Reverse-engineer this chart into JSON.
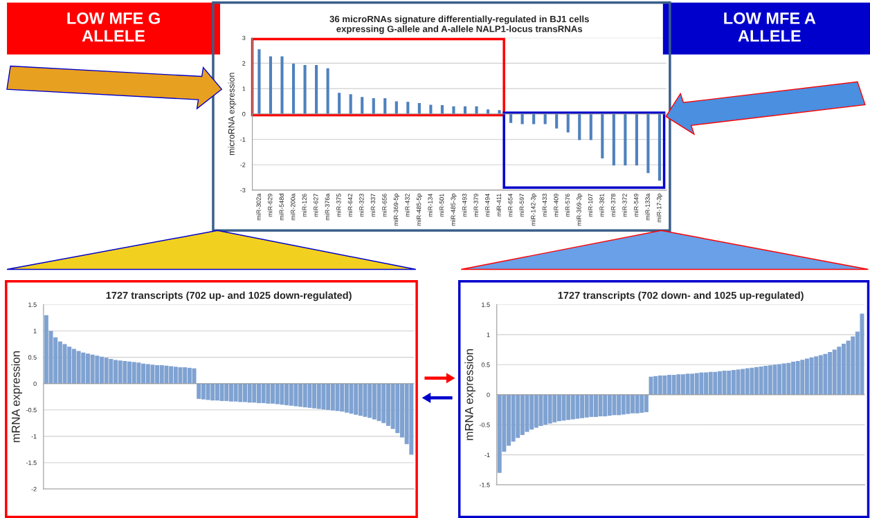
{
  "chart_data": [
    {
      "type": "bar",
      "title": "36 microRNAs signature differentially-regulated in BJ1 cells\nexpressing G-allele and A-allele NALP1-locus transRNAs",
      "ylabel": "microRNA expression",
      "categories": [
        "miR-302a",
        "miR-629",
        "miR-548d",
        "miR-200a",
        "miR-126",
        "miR-627",
        "miR-376a",
        "miR-375",
        "miR-642",
        "miR-323",
        "miR-337",
        "miR-656",
        "miR-369-5p",
        "miR-432",
        "miR-485-5p",
        "miR-134",
        "miR-501",
        "miR-485-3p",
        "miR-493",
        "miR-379",
        "miR-494",
        "miR-411",
        "miR-654",
        "miR-597",
        "miR-142-3p",
        "miR-433",
        "miR-409",
        "miR-576",
        "miR-369-3p",
        "miR-107",
        "miR-381",
        "miR-378",
        "miR-372",
        "miR-549",
        "miR-133a",
        "miR-17-3p"
      ],
      "values": [
        2.55,
        2.27,
        2.27,
        1.98,
        1.93,
        1.93,
        1.8,
        0.83,
        0.78,
        0.67,
        0.62,
        0.62,
        0.5,
        0.48,
        0.43,
        0.36,
        0.35,
        0.3,
        0.3,
        0.3,
        0.18,
        0.15,
        -0.35,
        -0.4,
        -0.4,
        -0.4,
        -0.57,
        -0.73,
        -1.03,
        -1.03,
        -1.75,
        -2.03,
        -2.03,
        -2.03,
        -2.33,
        -2.63
      ],
      "color": "#4f81bd",
      "ylim": [
        -3,
        3
      ],
      "yticks": [
        -3,
        -2,
        -1,
        0,
        1,
        2,
        3
      ],
      "grid": "y",
      "annotations": [
        "LOW MFE G\nALLELE",
        "LOW MFE A\nALLELE"
      ]
    },
    {
      "type": "bar",
      "title": "1727 transcripts (702 up- and 1025 down-regulated)",
      "ylabel": "mRNA expression",
      "categories": [
        null,
        null,
        null,
        null,
        null,
        null,
        null,
        null,
        null,
        null,
        null,
        null,
        null,
        null,
        null,
        null,
        null,
        null,
        null,
        null,
        null,
        null,
        null,
        null,
        null,
        null,
        null,
        null,
        null,
        null,
        null,
        null,
        null,
        null,
        null,
        null,
        null,
        null,
        null,
        null,
        null,
        null,
        null,
        null,
        null,
        null,
        null,
        null,
        null,
        null,
        null,
        null,
        null,
        null,
        null,
        null,
        null,
        null,
        null,
        null,
        null,
        null,
        null,
        null,
        null,
        null,
        null,
        null,
        null,
        null,
        null,
        null,
        null,
        null,
        null,
        null,
        null,
        null,
        null,
        null
      ],
      "values": [
        1.3,
        1.0,
        0.88,
        0.8,
        0.75,
        0.7,
        0.66,
        0.62,
        0.59,
        0.57,
        0.55,
        0.53,
        0.51,
        0.49,
        0.47,
        0.45,
        0.44,
        0.43,
        0.42,
        0.41,
        0.4,
        0.38,
        0.37,
        0.36,
        0.35,
        0.35,
        0.34,
        0.33,
        0.32,
        0.31,
        0.31,
        0.3,
        0.29,
        -0.29,
        -0.3,
        -0.31,
        -0.32,
        -0.32,
        -0.33,
        -0.33,
        -0.34,
        -0.34,
        -0.35,
        -0.35,
        -0.36,
        -0.36,
        -0.37,
        -0.37,
        -0.38,
        -0.38,
        -0.39,
        -0.4,
        -0.41,
        -0.42,
        -0.43,
        -0.44,
        -0.45,
        -0.46,
        -0.47,
        -0.48,
        -0.49,
        -0.5,
        -0.51,
        -0.52,
        -0.53,
        -0.55,
        -0.57,
        -0.59,
        -0.61,
        -0.63,
        -0.65,
        -0.68,
        -0.71,
        -0.75,
        -0.8,
        -0.86,
        -0.94,
        -1.02,
        -1.15,
        -1.35
      ],
      "color": "#7fa2d1",
      "ylim": [
        -2,
        1.5
      ],
      "yticks": [
        -2,
        -1.5,
        -1,
        -0.5,
        0,
        0.5,
        1,
        1.5
      ],
      "grid": "y"
    },
    {
      "type": "bar",
      "title": "1727 transcripts (702 down- and 1025 up-regulated)",
      "ylabel": "mRNA expression",
      "categories": [
        null,
        null,
        null,
        null,
        null,
        null,
        null,
        null,
        null,
        null,
        null,
        null,
        null,
        null,
        null,
        null,
        null,
        null,
        null,
        null,
        null,
        null,
        null,
        null,
        null,
        null,
        null,
        null,
        null,
        null,
        null,
        null,
        null,
        null,
        null,
        null,
        null,
        null,
        null,
        null,
        null,
        null,
        null,
        null,
        null,
        null,
        null,
        null,
        null,
        null,
        null,
        null,
        null,
        null,
        null,
        null,
        null,
        null,
        null,
        null,
        null,
        null,
        null,
        null,
        null,
        null,
        null,
        null,
        null,
        null,
        null,
        null,
        null,
        null,
        null,
        null,
        null,
        null,
        null,
        null
      ],
      "values": [
        -1.3,
        -0.95,
        -0.85,
        -0.78,
        -0.72,
        -0.67,
        -0.62,
        -0.58,
        -0.55,
        -0.52,
        -0.5,
        -0.48,
        -0.46,
        -0.44,
        -0.43,
        -0.42,
        -0.41,
        -0.4,
        -0.39,
        -0.38,
        -0.37,
        -0.37,
        -0.36,
        -0.36,
        -0.35,
        -0.34,
        -0.34,
        -0.33,
        -0.32,
        -0.31,
        -0.31,
        -0.3,
        -0.29,
        0.3,
        0.31,
        0.32,
        0.32,
        0.33,
        0.33,
        0.34,
        0.34,
        0.35,
        0.35,
        0.36,
        0.37,
        0.37,
        0.38,
        0.38,
        0.39,
        0.4,
        0.4,
        0.41,
        0.42,
        0.43,
        0.44,
        0.45,
        0.46,
        0.47,
        0.48,
        0.49,
        0.5,
        0.51,
        0.52,
        0.53,
        0.55,
        0.56,
        0.58,
        0.6,
        0.62,
        0.64,
        0.66,
        0.68,
        0.71,
        0.75,
        0.8,
        0.85,
        0.9,
        0.97,
        1.05,
        1.35
      ],
      "color": "#7fa2d1",
      "ylim": [
        -1.5,
        1.5
      ],
      "yticks": [
        -1.5,
        -1,
        -0.5,
        0,
        0.5,
        1,
        1.5
      ],
      "grid": "y"
    }
  ]
}
